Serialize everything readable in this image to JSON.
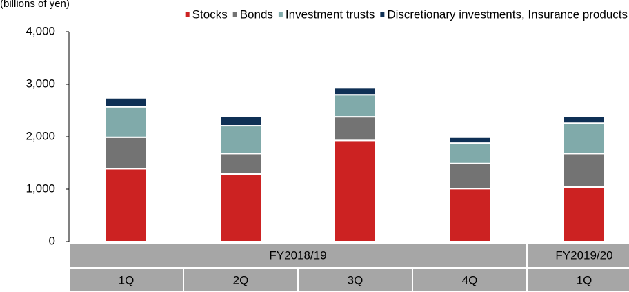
{
  "chart_data": {
    "type": "stacked_bar",
    "title": "(billions of yen)",
    "categories": [
      "1Q",
      "2Q",
      "3Q",
      "4Q",
      "1Q"
    ],
    "groups": [
      {
        "label": "FY2018/19",
        "span": 4
      },
      {
        "label": "FY2019/20",
        "span": 1
      }
    ],
    "series": [
      {
        "name": "Stocks",
        "color": "#cc2222",
        "values": [
          1390,
          1290,
          1930,
          1010,
          1040
        ]
      },
      {
        "name": "Bonds",
        "color": "#737373",
        "values": [
          600,
          390,
          450,
          480,
          640
        ]
      },
      {
        "name": "Investment trusts",
        "color": "#80aaaa",
        "values": [
          580,
          530,
          420,
          390,
          580
        ]
      },
      {
        "name": "Discretionary investments, Insurance products",
        "color": "#0f3055",
        "values": [
          170,
          180,
          130,
          110,
          130
        ]
      }
    ],
    "ylim": [
      0,
      4000
    ],
    "yticks": [
      0,
      {
        "value": 1000,
        "label": "1,000"
      },
      {
        "value": 2000,
        "label": "2,000"
      },
      {
        "value": 3000,
        "label": "3,000"
      },
      {
        "value": 4000,
        "label": "4,000"
      }
    ],
    "legend": "top-right"
  }
}
